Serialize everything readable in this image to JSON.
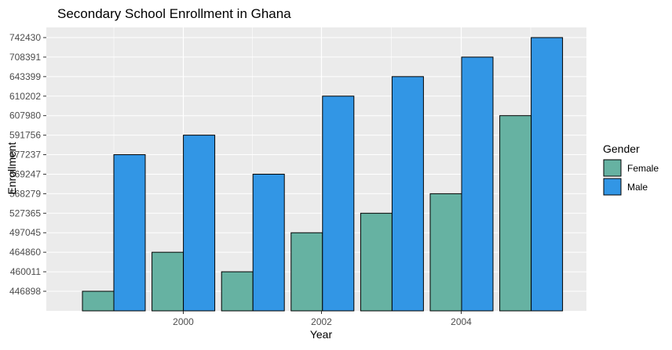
{
  "chart_data": {
    "type": "bar",
    "title": "Secondary School Enrollment in Ghana",
    "xlabel": "Year",
    "ylabel": "Enrollment",
    "x_ticks": [
      "2000",
      "2002",
      "2004"
    ],
    "y_ticks": [
      "446898",
      "460011",
      "464860",
      "497045",
      "527365",
      "568279",
      "569247",
      "577237",
      "591756",
      "607980",
      "610202",
      "643399",
      "708391",
      "742430"
    ],
    "legend": {
      "title": "Gender",
      "position": "right",
      "entries": [
        {
          "label": "Female",
          "color": "#66b2a2"
        },
        {
          "label": "Male",
          "color": "#3296e5"
        }
      ]
    },
    "groups": [
      {
        "female": 446898,
        "male": 577237
      },
      {
        "female": 464860,
        "male": 591756
      },
      {
        "female": 460011,
        "male": 569247
      },
      {
        "female": 497045,
        "male": 610202
      },
      {
        "female": 527365,
        "male": 643399
      },
      {
        "female": 568279,
        "male": 708391
      },
      {
        "female": 607980,
        "male": 742430
      }
    ],
    "series": [
      {
        "name": "Female",
        "values": [
          446898,
          464860,
          460011,
          497045,
          527365,
          568279,
          607980
        ]
      },
      {
        "name": "Male",
        "values": [
          577237,
          591756,
          569247,
          610202,
          643399,
          708391,
          742430
        ]
      }
    ],
    "grid": true,
    "y_axis_scale": "discrete"
  },
  "colors": {
    "panel_background": "#ebebeb",
    "gridline": "#ffffff",
    "bar_outline": "#000000"
  }
}
